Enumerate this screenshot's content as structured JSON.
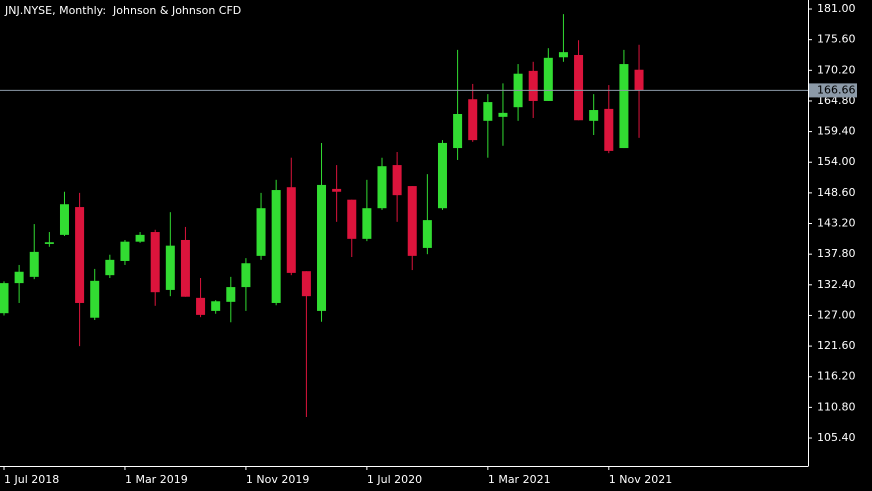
{
  "chart_data": {
    "type": "candlestick",
    "title": "JNJ.NYSE, Monthly:  Johnson & Johnson CFD",
    "categories": [
      "1 Jul 2018",
      null,
      null,
      null,
      null,
      null,
      null,
      null,
      "1 Mar 2019",
      null,
      null,
      null,
      null,
      null,
      null,
      null,
      "1 Nov 2019",
      null,
      null,
      null,
      null,
      null,
      null,
      null,
      "1 Jul 2020",
      null,
      null,
      null,
      null,
      null,
      null,
      null,
      "1 Mar 2021",
      null,
      null,
      null,
      null,
      null,
      null,
      null,
      "1 Nov 2021",
      null,
      null
    ],
    "open": [
      127.4,
      132.7,
      133.8,
      139.6,
      141.2,
      146.1,
      126.6,
      134.1,
      136.6,
      140.0,
      141.7,
      131.5,
      140.3,
      130.1,
      127.8,
      129.4,
      132.0,
      137.5,
      129.2,
      149.6,
      134.8,
      127.8,
      149.3,
      147.4,
      140.5,
      145.9,
      153.5,
      149.8,
      138.9,
      145.9,
      156.5,
      165.1,
      161.3,
      162.0,
      163.7,
      170.1,
      164.8,
      172.5,
      172.9,
      161.3,
      163.4,
      156.5,
      170.3
    ],
    "high": [
      133.0,
      135.9,
      143.1,
      141.7,
      148.8,
      148.6,
      135.2,
      137.7,
      140.3,
      141.7,
      142.1,
      145.2,
      142.6,
      133.6,
      129.7,
      133.8,
      137.1,
      148.6,
      150.9,
      154.8,
      134.8,
      157.4,
      153.5,
      147.4,
      150.9,
      154.8,
      155.8,
      149.8,
      151.9,
      157.9,
      173.8,
      167.8,
      166.0,
      167.9,
      171.3,
      171.7,
      174.1,
      180.1,
      175.5,
      166.0,
      167.6,
      173.8,
      174.7
    ],
    "low": [
      127.0,
      129.2,
      133.4,
      139.1,
      141.0,
      121.6,
      126.2,
      133.6,
      135.9,
      139.8,
      128.7,
      130.4,
      130.3,
      126.7,
      127.3,
      125.8,
      127.8,
      136.8,
      128.8,
      134.1,
      109.1,
      125.9,
      143.5,
      137.3,
      140.1,
      145.6,
      143.5,
      135.0,
      137.8,
      145.6,
      154.4,
      157.6,
      154.8,
      156.9,
      161.3,
      161.8,
      164.8,
      171.7,
      161.4,
      158.8,
      155.6,
      156.5,
      158.3
    ],
    "close": [
      132.7,
      134.7,
      138.2,
      139.9,
      146.6,
      129.2,
      133.1,
      136.8,
      140.0,
      141.2,
      131.1,
      139.3,
      130.3,
      127.1,
      129.5,
      132.0,
      136.2,
      145.9,
      149.1,
      134.5,
      130.4,
      150.0,
      148.8,
      140.5,
      145.9,
      153.3,
      148.2,
      137.5,
      143.8,
      157.4,
      162.5,
      157.9,
      164.6,
      162.7,
      169.6,
      164.8,
      172.4,
      173.4,
      161.4,
      163.2,
      156.0,
      171.3,
      166.66
    ],
    "up_color": "#32dc32",
    "down_color": "#dc143c",
    "ylim": [
      100.47,
      182.59
    ],
    "yticks": [
      {
        "value": 181.0,
        "label": "181.00"
      },
      {
        "value": 175.6,
        "label": "175.60"
      },
      {
        "value": 170.2,
        "label": "170.20"
      },
      {
        "value": 164.8,
        "label": "164.80"
      },
      {
        "value": 159.4,
        "label": "159.40"
      },
      {
        "value": 154.0,
        "label": "154.00"
      },
      {
        "value": 148.6,
        "label": "148.60"
      },
      {
        "value": 143.2,
        "label": "143.20"
      },
      {
        "value": 137.8,
        "label": "137.80"
      },
      {
        "value": 132.4,
        "label": "132.40"
      },
      {
        "value": 127.0,
        "label": "127.00"
      },
      {
        "value": 121.6,
        "label": "121.60"
      },
      {
        "value": 116.2,
        "label": "116.20"
      },
      {
        "value": 110.8,
        "label": "110.80"
      },
      {
        "value": 105.4,
        "label": "105.40"
      }
    ],
    "price_line": 166.66,
    "grid": false
  }
}
